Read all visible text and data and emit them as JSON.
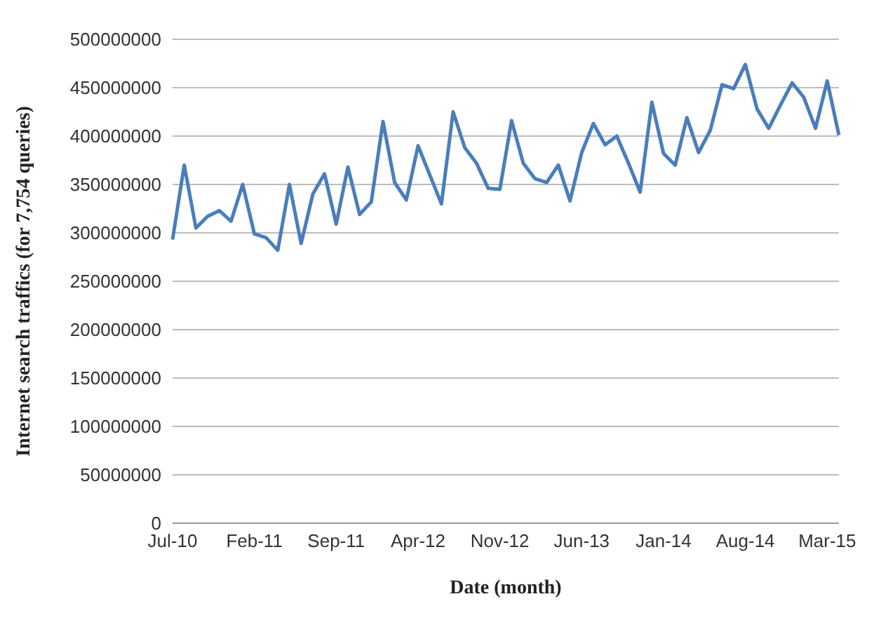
{
  "chart_data": {
    "type": "line",
    "xlabel": "Date (month)",
    "ylabel": "Internet search traffics (for 7,754 queries)",
    "categories": [
      "Jul-10",
      null,
      null,
      null,
      null,
      null,
      null,
      "Feb-11",
      null,
      null,
      null,
      null,
      null,
      null,
      "Sep-11",
      null,
      null,
      null,
      null,
      null,
      null,
      "Apr-12",
      null,
      null,
      null,
      null,
      null,
      null,
      "Nov-12",
      null,
      null,
      null,
      null,
      null,
      null,
      "Jun-13",
      null,
      null,
      null,
      null,
      null,
      null,
      "Jan-14",
      null,
      null,
      null,
      null,
      null,
      null,
      "Aug-14",
      null,
      null,
      null,
      null,
      null,
      null,
      "Mar-15",
      null
    ],
    "series": [
      {
        "color": "#4a7ebb",
        "values": [
          293000000,
          370000000,
          305000000,
          317000000,
          323000000,
          312000000,
          350000000,
          299000000,
          295000000,
          282000000,
          350000000,
          289000000,
          340000000,
          361000000,
          309000000,
          368000000,
          319000000,
          332000000,
          415000000,
          352000000,
          334000000,
          390000000,
          360000000,
          330000000,
          425000000,
          388000000,
          372000000,
          346000000,
          345000000,
          416000000,
          372000000,
          356000000,
          352000000,
          370000000,
          333000000,
          383000000,
          413000000,
          391000000,
          400000000,
          372000000,
          342000000,
          435000000,
          382000000,
          370000000,
          419000000,
          383000000,
          406000000,
          453000000,
          449000000,
          474000000,
          428000000,
          408000000,
          432000000,
          455000000,
          440000000,
          408000000,
          457000000,
          401000000
        ]
      }
    ],
    "ylim": [
      0,
      500000000
    ],
    "yticks": [
      0,
      50000000,
      100000000,
      150000000,
      200000000,
      250000000,
      300000000,
      350000000,
      400000000,
      450000000,
      500000000
    ],
    "grid": "y",
    "legend": false,
    "marker": "none",
    "line_style": "solid"
  }
}
